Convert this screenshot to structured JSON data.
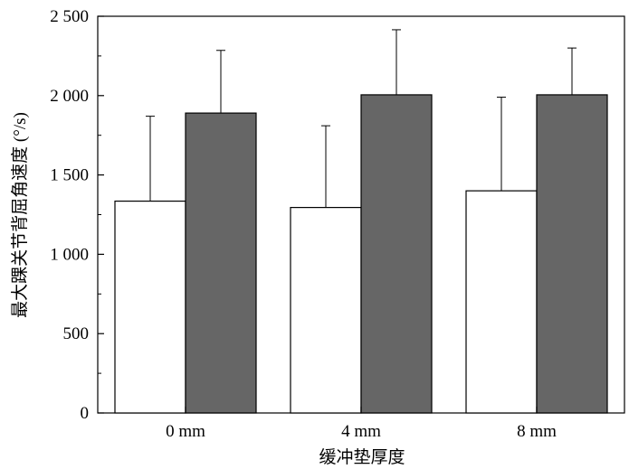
{
  "chart_data": {
    "type": "bar",
    "categories": [
      "0 mm",
      "4 mm",
      "8 mm"
    ],
    "series": [
      {
        "color": "#ffffff",
        "values": [
          1335,
          1295,
          1400
        ],
        "errors": [
          535,
          515,
          590
        ]
      },
      {
        "color": "#666666",
        "values": [
          1890,
          2005,
          2005
        ],
        "errors": [
          395,
          410,
          295
        ]
      }
    ],
    "xlabel": "缓冲垫厚度",
    "ylabel": "最大踝关节背屈角速度 (°/s)",
    "ylim": [
      0,
      2500
    ],
    "yticks": [
      0,
      500,
      1000,
      1500,
      2000,
      2500
    ],
    "ytick_labels": [
      "0",
      "500",
      "1 000",
      "1 500",
      "2 000",
      "2 500"
    ],
    "grid": false,
    "legend": "none"
  }
}
